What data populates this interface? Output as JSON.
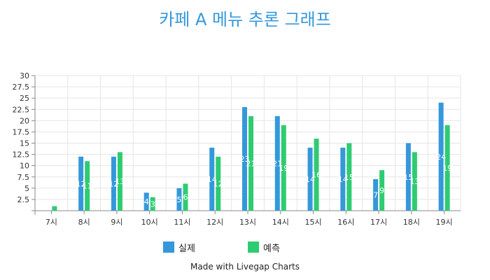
{
  "chart_data": {
    "type": "bar",
    "title": "카페 A 메뉴 추론 그래프",
    "categories": [
      "7시",
      "8시",
      "9시",
      "10시",
      "11시",
      "12시",
      "13시",
      "14시",
      "15시",
      "16시",
      "17시",
      "18시",
      "19시"
    ],
    "series": [
      {
        "name": "실제",
        "color": "#3498db",
        "values": [
          0,
          12,
          12,
          4,
          5,
          14,
          23,
          21,
          14,
          14,
          7,
          15,
          24
        ]
      },
      {
        "name": "예측",
        "color": "#2ecc71",
        "values": [
          1,
          11,
          13,
          3,
          6,
          12,
          21,
          19,
          16,
          15,
          9,
          13,
          19
        ]
      }
    ],
    "y_ticks": [
      "30",
      "27.5",
      "25",
      "22.5",
      "20",
      "17.5",
      "15",
      "12.5",
      "10",
      "7.5",
      "5",
      "2.5"
    ],
    "ylim": [
      0,
      30
    ],
    "grid": true,
    "legend_position": "bottom",
    "credit": "Made with Livegap Charts",
    "title_color": "#3498db",
    "grid_color": "#e5e5e5"
  }
}
